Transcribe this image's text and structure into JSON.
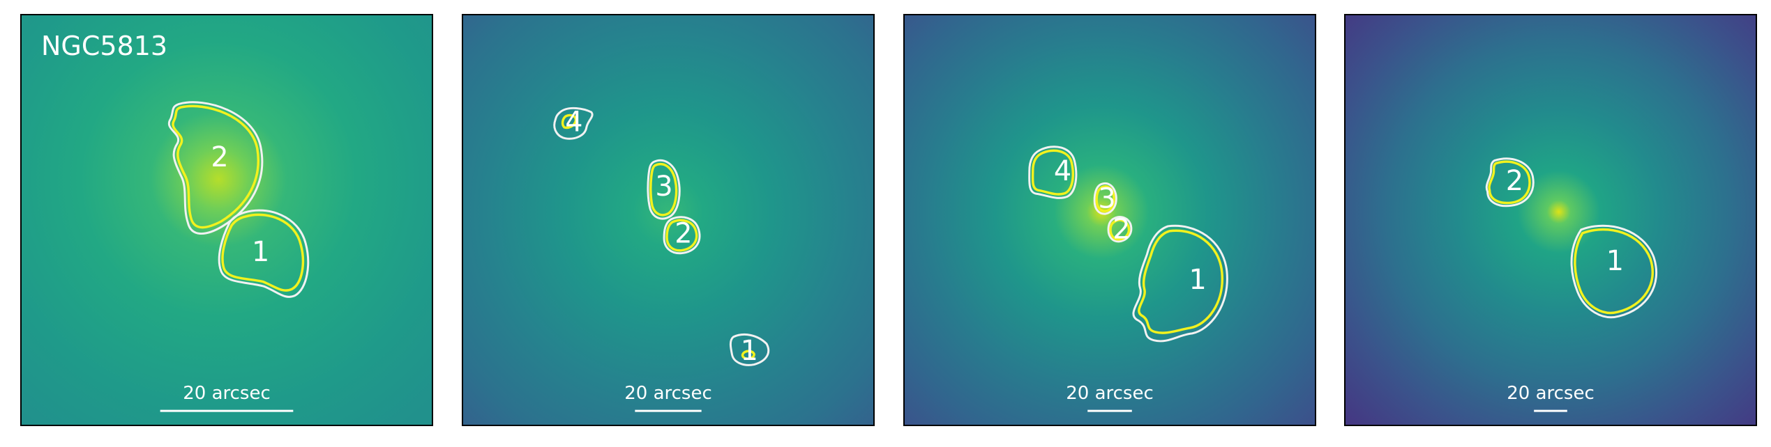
{
  "figure": {
    "galaxy_name": "NGC5813",
    "colors": {
      "colormap": "viridis",
      "contour_outer": "#f2f2f2",
      "contour_inner": "#f2f21e",
      "text": "#ffffff",
      "frame": "#000000"
    },
    "panels": [
      {
        "scale_label": "20 arcsec",
        "regions": [
          {
            "label": "1"
          },
          {
            "label": "2"
          }
        ]
      },
      {
        "scale_label": "20 arcsec",
        "regions": [
          {
            "label": "1"
          },
          {
            "label": "2"
          },
          {
            "label": "3"
          },
          {
            "label": "4"
          }
        ]
      },
      {
        "scale_label": "20 arcsec",
        "regions": [
          {
            "label": "1"
          },
          {
            "label": "2"
          },
          {
            "label": "3"
          },
          {
            "label": "4"
          }
        ]
      },
      {
        "scale_label": "20 arcsec",
        "regions": [
          {
            "label": "1"
          },
          {
            "label": "2"
          }
        ]
      }
    ]
  }
}
